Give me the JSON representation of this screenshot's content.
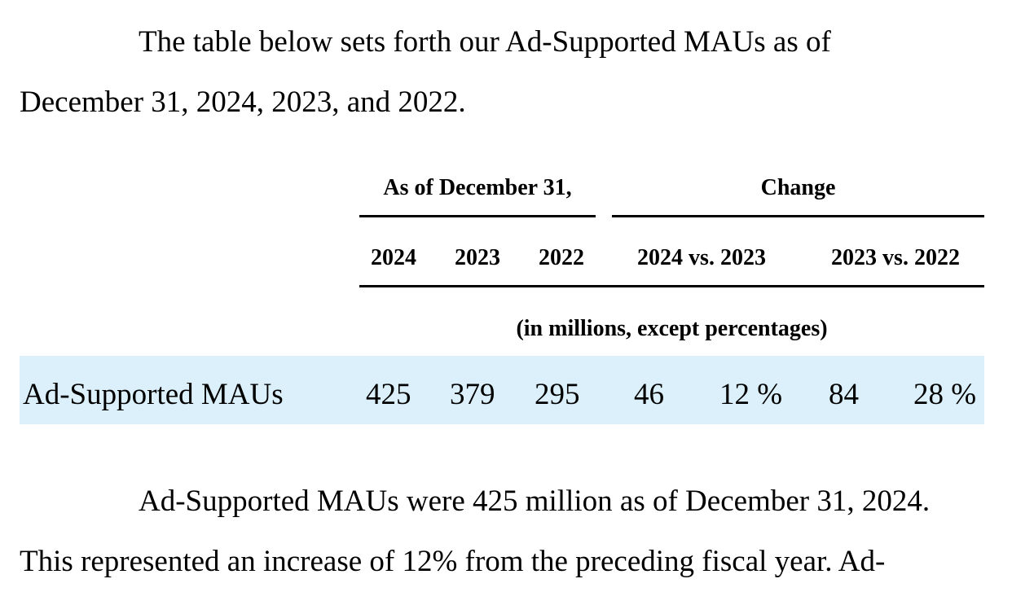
{
  "intro": {
    "line1": "The table below sets forth our Ad-Supported MAUs as of",
    "line2": "December 31, 2024, 2023, and 2022."
  },
  "table": {
    "group_header_left": "As of December 31,",
    "group_header_right": "Change",
    "col_2024": "2024",
    "col_2023": "2023",
    "col_2022": "2022",
    "col_change_24_23": "2024 vs. 2023",
    "col_change_23_22": "2023 vs. 2022",
    "units_note": "(in millions, except percentages)",
    "row": {
      "label": "Ad-Supported MAUs",
      "v2024": "425",
      "v2023": "379",
      "v2022": "295",
      "chg_24_23_abs": "46",
      "chg_24_23_pct": "12 %",
      "chg_23_22_abs": "84",
      "chg_23_22_pct": "28 %"
    },
    "highlight_color": "#dbf0fa"
  },
  "body": {
    "line1": "Ad-Supported MAUs were 425 million as of December 31, 2024.",
    "line2": "This represented an increase of 12% from the preceding fiscal year. Ad-"
  }
}
